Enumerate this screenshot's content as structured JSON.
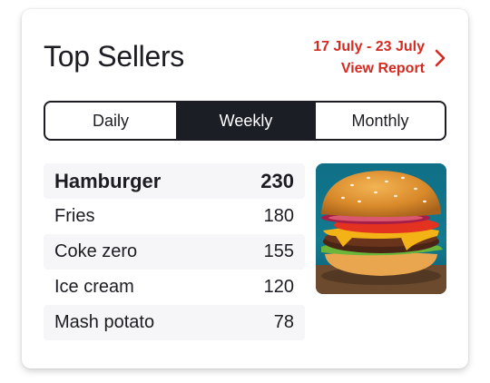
{
  "card": {
    "title": "Top Sellers",
    "date_range": "17 July - 23 July",
    "report_link": "View Report"
  },
  "tabs": [
    {
      "label": "Daily",
      "active": false
    },
    {
      "label": "Weekly",
      "active": true
    },
    {
      "label": "Monthly",
      "active": false
    }
  ],
  "items": [
    {
      "name": "Hamburger",
      "count": "230"
    },
    {
      "name": "Fries",
      "count": "180"
    },
    {
      "name": "Coke zero",
      "count": "155"
    },
    {
      "name": "Ice cream",
      "count": "120"
    },
    {
      "name": "Mash potato",
      "count": "78"
    }
  ],
  "image": {
    "icon": "hamburger-photo"
  },
  "colors": {
    "accent": "#d62a21",
    "dark": "#1c1e26",
    "row_shade": "#f6f6f8"
  }
}
